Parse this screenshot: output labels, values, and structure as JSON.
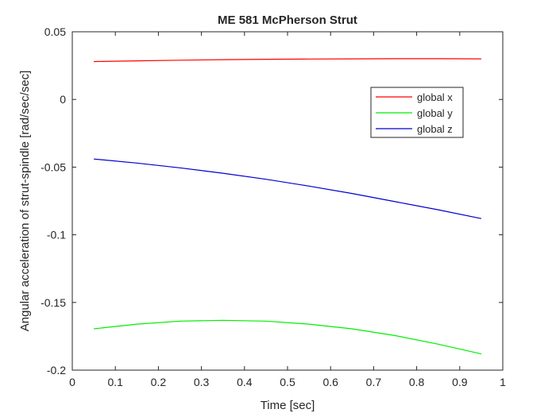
{
  "chart_data": {
    "type": "line",
    "title": "ME 581 McPherson Strut",
    "xlabel": "Time [sec]",
    "ylabel": "Angular acceleration of strut-spindle [rad/sec/sec]",
    "xlim": [
      0,
      1
    ],
    "ylim": [
      -0.2,
      0.05
    ],
    "xticks": [
      "0",
      "0.1",
      "0.2",
      "0.3",
      "0.4",
      "0.5",
      "0.6",
      "0.7",
      "0.8",
      "0.9",
      "1"
    ],
    "yticks": [
      "0.05",
      "0",
      "-0.05",
      "-0.1",
      "-0.15",
      "-0.2"
    ],
    "grid": false,
    "legend_position": "top-right",
    "x": [
      0.05,
      0.15,
      0.25,
      0.35,
      0.45,
      0.55,
      0.65,
      0.75,
      0.85,
      0.95
    ],
    "series": [
      {
        "name": "global x",
        "color": "#ff0000",
        "values": [
          0.028,
          0.0285,
          0.029,
          0.0294,
          0.0297,
          0.0299,
          0.03,
          0.0301,
          0.0301,
          0.03
        ]
      },
      {
        "name": "global y",
        "color": "#00ee00",
        "values": [
          -0.1695,
          -0.166,
          -0.1638,
          -0.1632,
          -0.1638,
          -0.166,
          -0.1695,
          -0.1745,
          -0.1808,
          -0.188
        ]
      },
      {
        "name": "global z",
        "color": "#0000cc",
        "values": [
          -0.044,
          -0.047,
          -0.0505,
          -0.0545,
          -0.059,
          -0.064,
          -0.0695,
          -0.0755,
          -0.0815,
          -0.088
        ]
      }
    ]
  }
}
